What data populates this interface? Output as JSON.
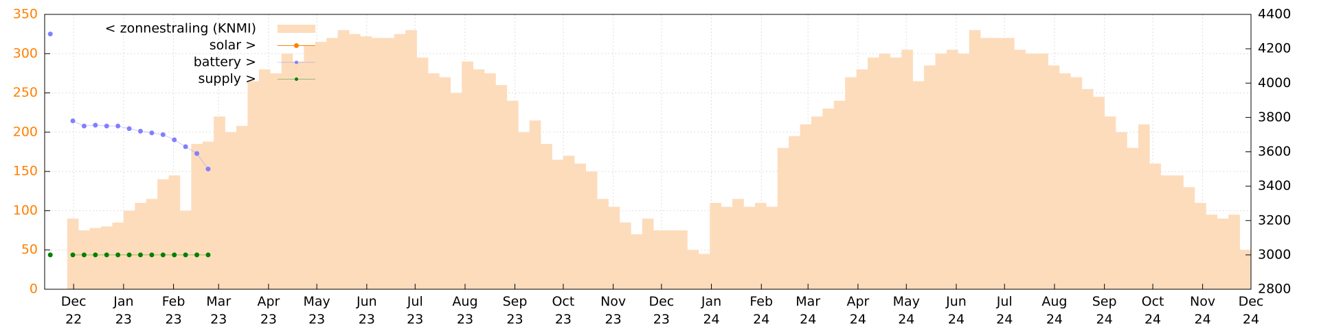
{
  "chart_data": {
    "type": "bar",
    "x": [
      0,
      1,
      2,
      3,
      4,
      5,
      6,
      7,
      8,
      9,
      10,
      11,
      12,
      13,
      14,
      15,
      16,
      17,
      18,
      19,
      20,
      21,
      22,
      23,
      24,
      25,
      26,
      27,
      28,
      29,
      30,
      31,
      32,
      33,
      34,
      35,
      36,
      37,
      38,
      39,
      40,
      41,
      42,
      43,
      44,
      45,
      46,
      47,
      48,
      49,
      50,
      51,
      52,
      53,
      54,
      55,
      56,
      57,
      58,
      59,
      60,
      61,
      62,
      63,
      64,
      65,
      66,
      67,
      68,
      69,
      70,
      71,
      72,
      73,
      74,
      75,
      76,
      77,
      78,
      79,
      80,
      81,
      82,
      83,
      84,
      85,
      86,
      87,
      88,
      89,
      90,
      91,
      92,
      93,
      94,
      95,
      96,
      97,
      98,
      99,
      100,
      101,
      102,
      103,
      104,
      105,
      106
    ],
    "xlim": [
      0,
      107
    ],
    "xticks": [
      {
        "value": 2.57,
        "label": "Dec\n22"
      },
      {
        "value": 7.0,
        "label": "Jan\n23"
      },
      {
        "value": 11.43,
        "label": "Feb\n23"
      },
      {
        "value": 15.43,
        "label": "Mar\n23"
      },
      {
        "value": 19.86,
        "label": "Apr\n23"
      },
      {
        "value": 24.14,
        "label": "May\n23"
      },
      {
        "value": 28.57,
        "label": "Jun\n23"
      },
      {
        "value": 32.86,
        "label": "Jul\n23"
      },
      {
        "value": 37.29,
        "label": "Aug\n23"
      },
      {
        "value": 41.71,
        "label": "Sep\n23"
      },
      {
        "value": 46.0,
        "label": "Oct\n23"
      },
      {
        "value": 50.43,
        "label": "Nov\n23"
      },
      {
        "value": 54.71,
        "label": "Dec\n23"
      },
      {
        "value": 59.14,
        "label": "Jan\n24"
      },
      {
        "value": 63.57,
        "label": "Feb\n24"
      },
      {
        "value": 67.71,
        "label": "Mar\n24"
      },
      {
        "value": 72.14,
        "label": "Apr\n24"
      },
      {
        "value": 76.43,
        "label": "May\n24"
      },
      {
        "value": 80.86,
        "label": "Jun\n24"
      },
      {
        "value": 85.14,
        "label": "Jul\n24"
      },
      {
        "value": 89.57,
        "label": "Aug\n24"
      },
      {
        "value": 94.0,
        "label": "Sep\n24"
      },
      {
        "value": 98.29,
        "label": "Oct\n24"
      },
      {
        "value": 102.71,
        "label": "Nov\n24"
      },
      {
        "value": 107.0,
        "label": "Dec\n24"
      }
    ],
    "ylim": [
      0,
      350
    ],
    "yticks": [
      0,
      50,
      100,
      150,
      200,
      250,
      300,
      350
    ],
    "y2lim": [
      2800,
      4400
    ],
    "y2ticks": [
      2800,
      3000,
      3200,
      3400,
      3600,
      3800,
      4000,
      4200,
      4400
    ],
    "grid": true,
    "legend": "top-left",
    "ytick_color": "#ff8000",
    "series": [
      {
        "name": "< zonnestraling (KNMI)",
        "color": "#fddcbc",
        "axis": "y",
        "values": [
          null,
          null,
          90,
          75,
          78,
          80,
          85,
          100,
          110,
          115,
          140,
          145,
          100,
          185,
          188,
          220,
          200,
          208,
          265,
          280,
          275,
          300,
          290,
          310,
          315,
          320,
          330,
          325,
          322,
          320,
          320,
          325,
          330,
          295,
          275,
          270,
          250,
          290,
          280,
          275,
          260,
          240,
          200,
          215,
          185,
          165,
          170,
          160,
          150,
          115,
          105,
          85,
          70,
          90,
          75,
          75,
          75,
          50,
          45,
          110,
          105,
          115,
          105,
          110,
          105,
          180,
          195,
          210,
          220,
          230,
          240,
          270,
          280,
          295,
          300,
          295,
          305,
          265,
          285,
          300,
          305,
          300,
          330,
          320,
          320,
          320,
          305,
          300,
          300,
          285,
          275,
          270,
          255,
          245,
          220,
          200,
          180,
          210,
          160,
          145,
          145,
          130,
          110,
          95,
          90,
          95,
          50
        ]
      },
      {
        "name": "solar >",
        "color": "#ff8000",
        "axis": "y2"
      },
      {
        "name": "battery >",
        "color": "#8080ff",
        "axis": "y2",
        "values": [
          4286,
          null,
          3780,
          3750,
          3755,
          3750,
          3750,
          3735,
          3720,
          3710,
          3700,
          3670,
          3630,
          3590,
          3500,
          null,
          null,
          null,
          null,
          null,
          null,
          null,
          null,
          null,
          null,
          null,
          null,
          null,
          null,
          null,
          null,
          null,
          null,
          null,
          null,
          null,
          null,
          null,
          null,
          null,
          null,
          null,
          null,
          null,
          null,
          null,
          null,
          null,
          null,
          null,
          null,
          null,
          null,
          null,
          null,
          null,
          null,
          null,
          null,
          null,
          null,
          null,
          null,
          null,
          null,
          null,
          null,
          null,
          null,
          null,
          null,
          null,
          null,
          null,
          null,
          null,
          null,
          null,
          null,
          null,
          null,
          null,
          null,
          null,
          null,
          null,
          null,
          null,
          null,
          null,
          null,
          null,
          null,
          null,
          null,
          null,
          null,
          null,
          null,
          null,
          null,
          null,
          null,
          null,
          null,
          null,
          null
        ]
      },
      {
        "name": "supply >",
        "color": "#008000",
        "axis": "y2",
        "values": [
          3000,
          null,
          3000,
          3000,
          3000,
          3000,
          3000,
          3000,
          3000,
          3000,
          3000,
          3000,
          3000,
          3000,
          3000,
          null,
          null,
          null,
          null,
          null,
          null,
          null,
          null,
          null,
          null,
          null,
          null,
          null,
          null,
          null,
          null,
          null,
          null,
          null,
          null,
          null,
          null,
          null,
          null,
          null,
          null,
          null,
          null,
          null,
          null,
          null,
          null,
          null,
          null,
          null,
          null,
          null,
          null,
          null,
          null,
          null,
          null,
          null,
          null,
          null,
          null,
          null,
          null,
          null,
          null,
          null,
          null,
          null,
          null,
          null,
          null,
          null,
          null,
          null,
          null,
          null,
          null,
          null,
          null,
          null,
          null,
          null,
          null,
          null,
          null,
          null,
          null,
          null,
          null,
          null,
          null,
          null,
          null,
          null,
          null,
          null,
          null,
          null,
          null,
          null,
          null,
          null,
          null,
          null,
          null,
          null,
          null
        ]
      }
    ]
  }
}
